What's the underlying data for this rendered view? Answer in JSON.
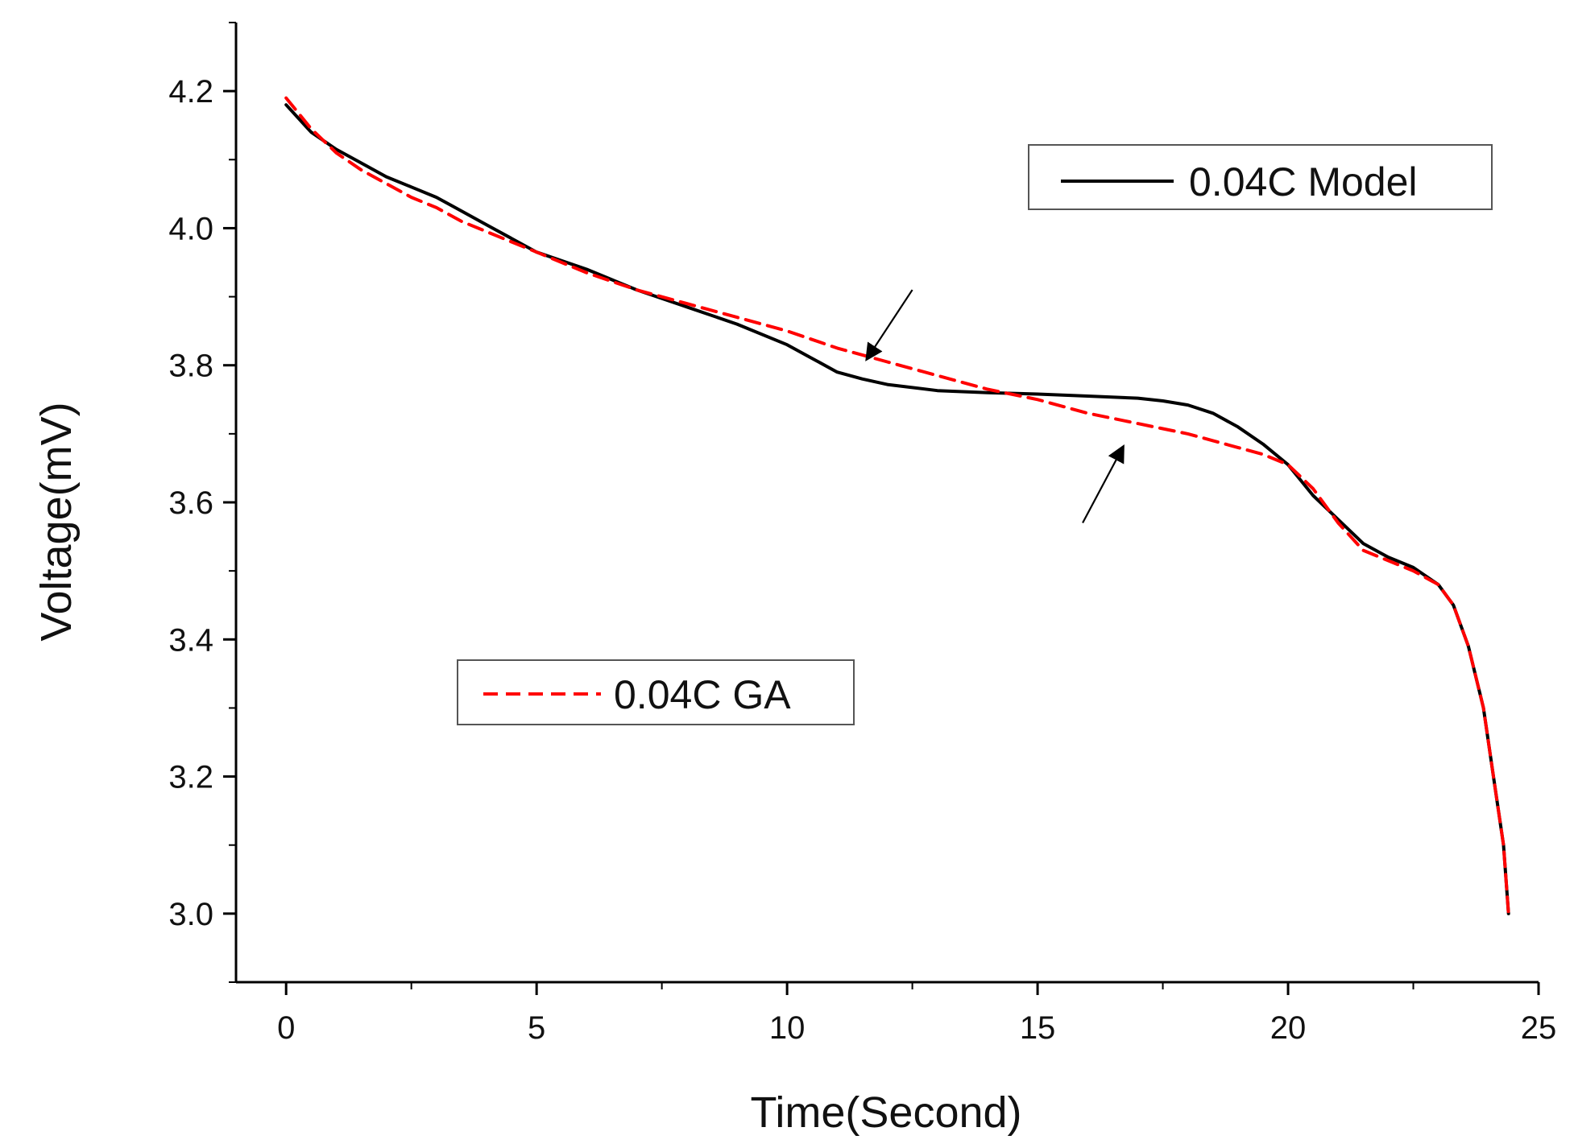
{
  "chart_data": {
    "type": "line",
    "title": "",
    "xlabel": "Time(Second)",
    "ylabel": "Voltage(mV)",
    "xlim": [
      -1,
      25
    ],
    "ylim": [
      2.9,
      4.3
    ],
    "x_ticks": [
      0,
      5,
      10,
      15,
      20,
      25
    ],
    "x_tick_labels": [
      "0",
      "5",
      "10",
      "15",
      "20",
      "25"
    ],
    "y_ticks": [
      3.0,
      3.2,
      3.4,
      3.6,
      3.8,
      4.0,
      4.2
    ],
    "y_tick_labels": [
      "3.0",
      "3.2",
      "3.4",
      "3.6",
      "3.8",
      "4.0",
      "4.2"
    ],
    "grid": false,
    "series": [
      {
        "name": "0.04C Model",
        "color": "#000000",
        "style": "solid",
        "x": [
          0,
          0.5,
          1,
          1.5,
          2,
          2.5,
          3,
          3.5,
          4,
          4.5,
          5,
          6,
          7,
          8,
          9,
          10,
          10.5,
          11,
          11.5,
          12,
          13,
          14,
          15,
          16,
          17,
          17.5,
          18,
          18.5,
          19,
          19.5,
          20,
          20.5,
          21,
          21.5,
          22,
          22.5,
          23,
          23.3,
          23.6,
          23.9,
          24.1,
          24.3,
          24.4
        ],
        "y": [
          4.18,
          4.14,
          4.115,
          4.095,
          4.075,
          4.06,
          4.045,
          4.025,
          4.005,
          3.985,
          3.965,
          3.94,
          3.91,
          3.885,
          3.86,
          3.83,
          3.81,
          3.79,
          3.78,
          3.772,
          3.763,
          3.76,
          3.758,
          3.755,
          3.752,
          3.748,
          3.742,
          3.73,
          3.71,
          3.685,
          3.655,
          3.61,
          3.575,
          3.54,
          3.52,
          3.505,
          3.48,
          3.45,
          3.39,
          3.3,
          3.2,
          3.1,
          3.0
        ]
      },
      {
        "name": "0.04C GA",
        "color": "#ff0000",
        "style": "dashed",
        "x": [
          0,
          0.5,
          1,
          1.5,
          2,
          2.5,
          3,
          3.5,
          4,
          4.5,
          5,
          6,
          7,
          8,
          9,
          10,
          11,
          12,
          13,
          14,
          15,
          16,
          17,
          18,
          18.5,
          19,
          19.5,
          20,
          20.5,
          21,
          21.5,
          22,
          22.5,
          23,
          23.3,
          23.6,
          23.9,
          24.1,
          24.3,
          24.4
        ],
        "y": [
          4.19,
          4.145,
          4.11,
          4.085,
          4.065,
          4.045,
          4.03,
          4.01,
          3.995,
          3.98,
          3.965,
          3.935,
          3.91,
          3.89,
          3.87,
          3.85,
          3.825,
          3.805,
          3.785,
          3.765,
          3.75,
          3.73,
          3.715,
          3.7,
          3.69,
          3.68,
          3.67,
          3.655,
          3.62,
          3.57,
          3.53,
          3.515,
          3.5,
          3.48,
          3.45,
          3.39,
          3.3,
          3.2,
          3.1,
          3.0
        ]
      }
    ],
    "legend_entries": [
      {
        "label": "0.04C Model",
        "placement": "top-right"
      },
      {
        "label": "0.04C GA",
        "placement": "middle-left"
      }
    ],
    "annotations": [
      {
        "type": "arrow",
        "from": [
          12.5,
          3.91
        ],
        "to": [
          11.6,
          3.81
        ]
      },
      {
        "type": "arrow",
        "from": [
          15.9,
          3.57
        ],
        "to": [
          16.7,
          3.68
        ]
      }
    ]
  }
}
